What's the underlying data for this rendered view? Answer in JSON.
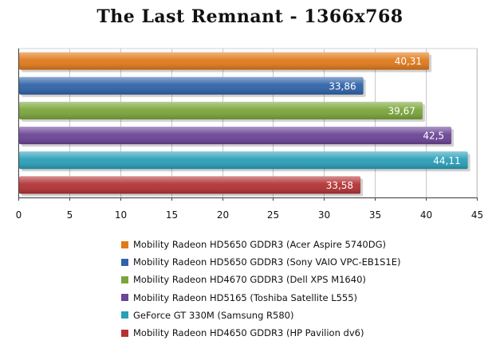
{
  "chart_data": {
    "type": "bar",
    "orientation": "horizontal",
    "title": "The Last Remnant - 1366x768",
    "xlim": [
      0,
      45
    ],
    "ticks": [
      "0",
      "5",
      "10",
      "15",
      "20",
      "25",
      "30",
      "35",
      "40",
      "45"
    ],
    "grid": true,
    "legend_position": "bottom",
    "series": [
      {
        "name": "Mobility Radeon HD5650 GDDR3 (Acer Aspire 5740DG)",
        "value": 40.31,
        "label": "40,31",
        "color": "#e07a1a"
      },
      {
        "name": "Mobility Radeon HD5650 GDDR3 (Sony VAIO VPC-EB1S1E)",
        "value": 33.86,
        "label": "33,86",
        "color": "#2f63a8"
      },
      {
        "name": "Mobility Radeon HD4670 GDDR3 (Dell XPS M1640)",
        "value": 39.67,
        "label": "39,67",
        "color": "#7ba53a"
      },
      {
        "name": "Mobility Radeon HD5165 (Toshiba Satellite L555)",
        "value": 42.5,
        "label": "42,5",
        "color": "#6b4596"
      },
      {
        "name": "GeForce GT 330M (Samsung R580)",
        "value": 44.11,
        "label": "44,11",
        "color": "#2a9fb8"
      },
      {
        "name": "Mobility Radeon HD4650 GDDR3 (HP Pavilion dv6)",
        "value": 33.58,
        "label": "33,58",
        "color": "#b33234"
      }
    ]
  }
}
